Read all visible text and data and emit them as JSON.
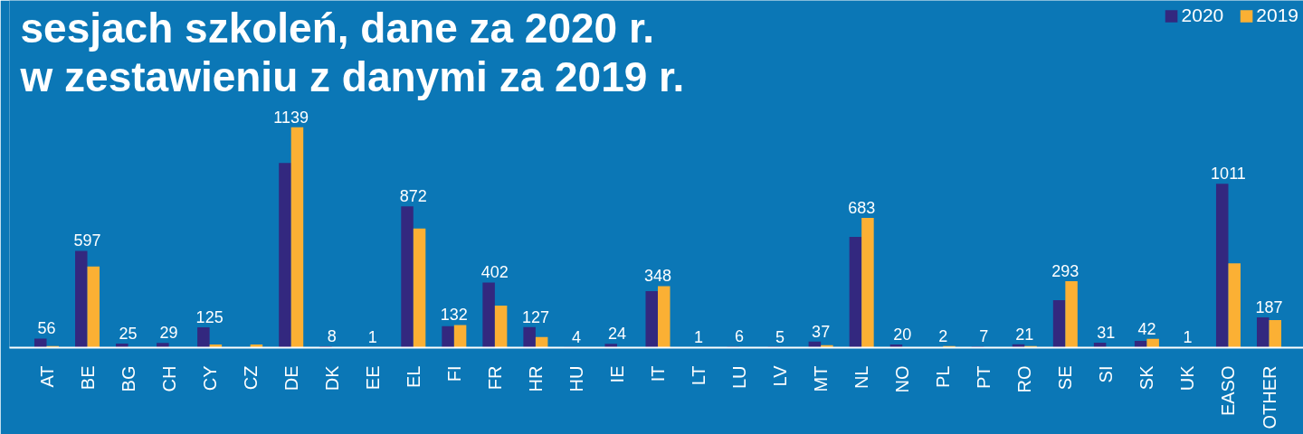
{
  "chart_data": {
    "type": "bar",
    "title": "sesjach szkoleń, dane za 2020 r. w zestawieniu z danymi za 2019 r.",
    "categories": [
      "AT",
      "BE",
      "BG",
      "CH",
      "CY",
      "CZ",
      "DE",
      "DK",
      "EE",
      "EL",
      "FI",
      "FR",
      "HR",
      "HU",
      "IE",
      "IT",
      "LT",
      "LU",
      "LV",
      "MT",
      "NL",
      "NO",
      "PL",
      "PT",
      "RO",
      "SE",
      "SI",
      "SK",
      "UK",
      "EASO",
      "OTHER"
    ],
    "series": [
      {
        "name": "2020",
        "color": "#33287f",
        "values": [
          56,
          597,
          25,
          29,
          125,
          null,
          1139,
          8,
          1,
          872,
          132,
          402,
          127,
          4,
          24,
          348,
          1,
          6,
          5,
          37,
          683,
          20,
          2,
          7,
          21,
          293,
          31,
          42,
          1,
          1011,
          187
        ],
        "value_labels": [
          "56",
          "597",
          "25",
          "29",
          "125",
          null,
          "1139",
          "8",
          "1",
          "872",
          "132",
          "402",
          "127",
          "4",
          "24",
          "348",
          "1",
          "6",
          "5",
          "37",
          "683",
          "20",
          "2",
          "7",
          "21",
          "293",
          "31",
          "42",
          "1",
          "1011",
          "187"
        ]
      },
      {
        "name": "2019",
        "color": "#fbb034",
        "values": [
          10,
          500,
          null,
          null,
          20,
          20,
          1360,
          null,
          null,
          735,
          140,
          260,
          65,
          null,
          null,
          380,
          null,
          null,
          null,
          15,
          800,
          null,
          10,
          null,
          10,
          410,
          null,
          55,
          null,
          520,
          170
        ]
      }
    ],
    "legend": "top right"
  }
}
